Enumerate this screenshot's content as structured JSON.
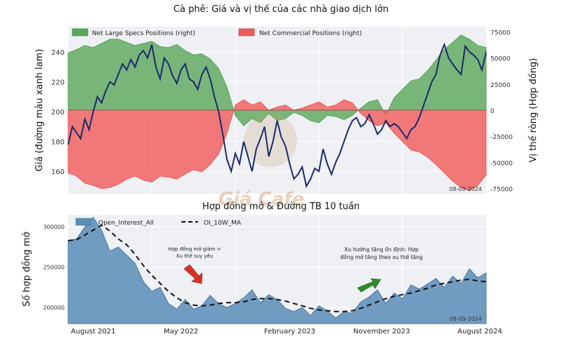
{
  "chart_data": [
    {
      "type": "line",
      "title": "Cà phê: Giá và vị thế của các nhà giao dịch lớn",
      "ylabel": "Giá (đường màu xanh lam)",
      "ylabel_right": "Vị thế ròng (Hợp đồng)",
      "ylim": [
        145,
        257
      ],
      "ylim_right": [
        -80000,
        80000
      ],
      "yticks": [
        160,
        180,
        200,
        220,
        240
      ],
      "yticks_right": [
        75000,
        50000,
        25000,
        0,
        -25000,
        -50000,
        -75000
      ],
      "yticks_right_labels": [
        "75000",
        "50000",
        "25000",
        "0",
        "-25000",
        "-50000",
        "-75000"
      ],
      "date_stamp": "08-09-2024",
      "legend": {
        "placement": "top",
        "items": [
          "Net Large Specs Positions (right)",
          "Net Commercial Positions (right)"
        ]
      },
      "grid": true,
      "series": [
        {
          "name": "Net Large Specs Positions (right)",
          "axis": "right",
          "kind": "area",
          "color": "#5aa65a",
          "x": [
            0,
            0.02,
            0.04,
            0.06,
            0.08,
            0.1,
            0.12,
            0.14,
            0.16,
            0.18,
            0.2,
            0.22,
            0.24,
            0.26,
            0.28,
            0.3,
            0.32,
            0.34,
            0.36,
            0.38,
            0.4,
            0.42,
            0.44,
            0.46,
            0.48,
            0.5,
            0.52,
            0.54,
            0.56,
            0.58,
            0.6,
            0.62,
            0.64,
            0.66,
            0.68,
            0.7,
            0.72,
            0.74,
            0.76,
            0.78,
            0.8,
            0.82,
            0.84,
            0.86,
            0.88,
            0.9,
            0.92,
            0.94,
            0.96,
            0.98,
            1
          ],
          "values": [
            55000,
            58000,
            62000,
            60000,
            64000,
            68000,
            68000,
            65000,
            62000,
            64000,
            66000,
            61000,
            60000,
            63000,
            57000,
            53000,
            54000,
            49000,
            40000,
            22000,
            -5000,
            -15000,
            -8000,
            -12000,
            -3000,
            -10000,
            -8000,
            -2000,
            -5000,
            -10000,
            -12000,
            -5000,
            -6000,
            -9000,
            -5000,
            2000,
            8000,
            10000,
            -5000,
            12000,
            20000,
            28000,
            30000,
            38000,
            48000,
            58000,
            65000,
            72000,
            68000,
            62000,
            60000
          ]
        },
        {
          "name": "Net Commercial Positions (right)",
          "axis": "right",
          "kind": "area",
          "color": "#f05a5a",
          "x": [
            0,
            0.02,
            0.04,
            0.06,
            0.08,
            0.1,
            0.12,
            0.14,
            0.16,
            0.18,
            0.2,
            0.22,
            0.24,
            0.26,
            0.28,
            0.3,
            0.32,
            0.34,
            0.36,
            0.38,
            0.4,
            0.42,
            0.44,
            0.46,
            0.48,
            0.5,
            0.52,
            0.54,
            0.56,
            0.58,
            0.6,
            0.62,
            0.64,
            0.66,
            0.68,
            0.7,
            0.72,
            0.74,
            0.76,
            0.78,
            0.8,
            0.82,
            0.84,
            0.86,
            0.88,
            0.9,
            0.92,
            0.94,
            0.96,
            0.98,
            1
          ],
          "values": [
            -60000,
            -63000,
            -70000,
            -72000,
            -75000,
            -74000,
            -71000,
            -66000,
            -63000,
            -67000,
            -69000,
            -63000,
            -64000,
            -66000,
            -61000,
            -57000,
            -59000,
            -52000,
            -42000,
            -22000,
            5000,
            10000,
            5000,
            8000,
            0,
            3000,
            5000,
            0,
            2000,
            5000,
            8000,
            3000,
            5000,
            10000,
            7000,
            -3000,
            -10000,
            -15000,
            -12000,
            -22000,
            -30000,
            -38000,
            -40000,
            -45000,
            -52000,
            -60000,
            -68000,
            -74000,
            -77000,
            -72000,
            -62000
          ]
        },
        {
          "name": "",
          "axis": "left",
          "kind": "line",
          "color": "#1a2a6c",
          "x": [
            0,
            0.01,
            0.02,
            0.03,
            0.04,
            0.05,
            0.06,
            0.07,
            0.08,
            0.09,
            0.1,
            0.11,
            0.12,
            0.13,
            0.14,
            0.15,
            0.16,
            0.17,
            0.18,
            0.19,
            0.2,
            0.21,
            0.22,
            0.23,
            0.24,
            0.25,
            0.26,
            0.27,
            0.28,
            0.29,
            0.3,
            0.31,
            0.32,
            0.33,
            0.34,
            0.35,
            0.36,
            0.37,
            0.38,
            0.39,
            0.4,
            0.41,
            0.42,
            0.43,
            0.44,
            0.45,
            0.46,
            0.47,
            0.48,
            0.49,
            0.5,
            0.51,
            0.52,
            0.53,
            0.54,
            0.55,
            0.56,
            0.57,
            0.58,
            0.59,
            0.6,
            0.61,
            0.62,
            0.63,
            0.64,
            0.65,
            0.66,
            0.67,
            0.68,
            0.69,
            0.7,
            0.71,
            0.72,
            0.73,
            0.74,
            0.75,
            0.76,
            0.77,
            0.78,
            0.79,
            0.8,
            0.81,
            0.82,
            0.83,
            0.84,
            0.85,
            0.86,
            0.87,
            0.88,
            0.89,
            0.9,
            0.91,
            0.92,
            0.93,
            0.94,
            0.95,
            0.96,
            0.97,
            0.98,
            0.99,
            1
          ],
          "values": [
            178,
            190,
            186,
            182,
            195,
            188,
            200,
            210,
            206,
            214,
            220,
            218,
            225,
            232,
            228,
            235,
            230,
            238,
            241,
            236,
            245,
            230,
            222,
            236,
            232,
            224,
            219,
            228,
            232,
            222,
            220,
            215,
            225,
            230,
            222,
            210,
            200,
            185,
            168,
            160,
            172,
            165,
            180,
            170,
            160,
            175,
            182,
            190,
            170,
            180,
            194,
            183,
            177,
            165,
            155,
            158,
            163,
            150,
            155,
            162,
            160,
            175,
            165,
            158,
            166,
            172,
            180,
            188,
            194,
            196,
            190,
            192,
            198,
            192,
            185,
            188,
            194,
            190,
            192,
            190,
            186,
            182,
            188,
            190,
            196,
            204,
            212,
            220,
            225,
            238,
            245,
            236,
            232,
            228,
            225,
            244,
            240,
            238,
            235,
            228,
            240
          ]
        }
      ]
    },
    {
      "type": "area",
      "title": "Hợp đồng mở  & Đường TB 10 tuần",
      "ylabel": "Số hợp đồng mở",
      "ylim": [
        180000,
        315000
      ],
      "yticks": [
        200000,
        250000,
        300000
      ],
      "categories": [
        "August 2021",
        "May 2022",
        "February 2023",
        "November 2023",
        "August 2024"
      ],
      "date_stamp": "08-09-2024",
      "legend": {
        "placement": "top-left",
        "items": [
          "Open_Interest_All",
          "OI_10W_MA"
        ]
      },
      "grid": true,
      "annotations": [
        {
          "text_lines": [
            "Hợp đồng mở giảm =",
            "Xu thế suy yếu"
          ],
          "arrow": "down-right",
          "arrow_color": "#d93025"
        },
        {
          "text_lines": [
            "Xu hướng tăng ổn định: Hợp",
            "đồng mở tăng theo xu thế tăng"
          ],
          "arrow": "up-right",
          "arrow_color": "#2e8b2e"
        }
      ],
      "series": [
        {
          "name": "Open_Interest_All",
          "kind": "area",
          "color": "#5b8db8",
          "x": [
            0,
            0.02,
            0.04,
            0.06,
            0.08,
            0.1,
            0.12,
            0.14,
            0.16,
            0.18,
            0.2,
            0.22,
            0.24,
            0.26,
            0.28,
            0.3,
            0.32,
            0.34,
            0.36,
            0.38,
            0.4,
            0.42,
            0.44,
            0.46,
            0.48,
            0.5,
            0.52,
            0.54,
            0.56,
            0.58,
            0.6,
            0.62,
            0.64,
            0.66,
            0.68,
            0.7,
            0.72,
            0.74,
            0.76,
            0.78,
            0.8,
            0.82,
            0.84,
            0.86,
            0.88,
            0.9,
            0.92,
            0.94,
            0.96,
            0.98,
            1
          ],
          "values": [
            283000,
            285000,
            300000,
            312000,
            296000,
            270000,
            275000,
            265000,
            255000,
            232000,
            220000,
            225000,
            205000,
            198000,
            210000,
            198000,
            202000,
            215000,
            205000,
            200000,
            205000,
            212000,
            222000,
            206000,
            216000,
            210000,
            199000,
            195000,
            200000,
            190000,
            202000,
            196000,
            187000,
            195000,
            193000,
            207000,
            213000,
            222000,
            205000,
            218000,
            211000,
            228000,
            223000,
            229000,
            236000,
            225000,
            239000,
            230000,
            248000,
            237000,
            243000
          ]
        },
        {
          "name": "OI_10W_MA",
          "kind": "dashed-line",
          "color": "#111111",
          "x": [
            0,
            0.02,
            0.04,
            0.06,
            0.08,
            0.1,
            0.12,
            0.14,
            0.16,
            0.18,
            0.2,
            0.22,
            0.24,
            0.26,
            0.28,
            0.3,
            0.32,
            0.34,
            0.36,
            0.38,
            0.4,
            0.42,
            0.44,
            0.46,
            0.48,
            0.5,
            0.52,
            0.54,
            0.56,
            0.58,
            0.6,
            0.62,
            0.64,
            0.66,
            0.68,
            0.7,
            0.72,
            0.74,
            0.76,
            0.78,
            0.8,
            0.82,
            0.84,
            0.86,
            0.88,
            0.9,
            0.92,
            0.94,
            0.96,
            0.98,
            1
          ],
          "values": [
            283000,
            284000,
            290000,
            296000,
            302000,
            295000,
            285000,
            278000,
            266000,
            252000,
            240000,
            230000,
            220000,
            212000,
            206000,
            203000,
            202000,
            203000,
            205000,
            206000,
            206000,
            207000,
            210000,
            211000,
            211000,
            210000,
            208000,
            205000,
            202000,
            199000,
            197000,
            196000,
            195000,
            195000,
            196000,
            199000,
            203000,
            207000,
            211000,
            214000,
            216000,
            218000,
            221000,
            224000,
            228000,
            230000,
            232000,
            234000,
            235000,
            233000,
            232000
          ]
        }
      ]
    }
  ],
  "watermark": "Giá Cafe",
  "colors": {
    "green": "#5aa65a",
    "red": "#f05a5a",
    "price": "#1a2a6c",
    "oi": "#5b8db8"
  }
}
